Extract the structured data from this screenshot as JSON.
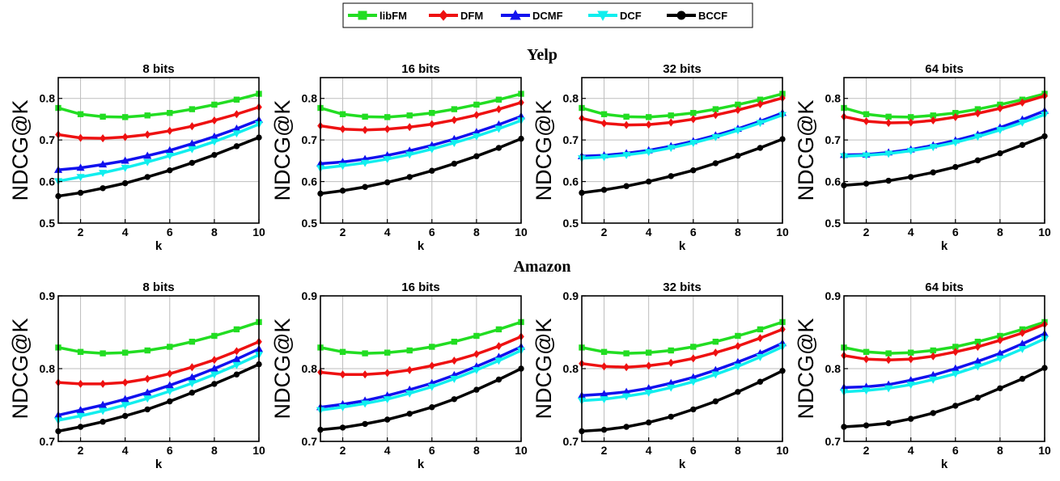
{
  "legend": [
    {
      "name": "libFM",
      "color": "#22dd22",
      "marker": "square"
    },
    {
      "name": "DFM",
      "color": "#ee1111",
      "marker": "diamond"
    },
    {
      "name": "DCMF",
      "color": "#1111ee",
      "marker": "triangle"
    },
    {
      "name": "DCF",
      "color": "#11eeee",
      "marker": "triangle-down"
    },
    {
      "name": "BCCF",
      "color": "#000000",
      "marker": "circle"
    }
  ],
  "datasets": [
    "Yelp",
    "Amazon"
  ],
  "chart_data": [
    {
      "type": "line",
      "dataset": "Yelp",
      "title": "8 bits",
      "xlabel": "k",
      "ylabel": "NDCG@K",
      "xlim": [
        1,
        10
      ],
      "ylim": [
        0.5,
        0.85
      ],
      "xticks": [
        2,
        4,
        6,
        8,
        10
      ],
      "yticks": [
        0.5,
        0.6,
        0.7,
        0.8
      ],
      "grid": true,
      "x": [
        1,
        2,
        3,
        4,
        5,
        6,
        7,
        8,
        9,
        10
      ],
      "series": [
        {
          "name": "libFM",
          "values": [
            0.777,
            0.762,
            0.756,
            0.755,
            0.759,
            0.765,
            0.774,
            0.785,
            0.797,
            0.811
          ]
        },
        {
          "name": "DFM",
          "values": [
            0.713,
            0.705,
            0.704,
            0.707,
            0.713,
            0.722,
            0.733,
            0.747,
            0.762,
            0.779
          ]
        },
        {
          "name": "DCMF",
          "values": [
            0.628,
            0.633,
            0.641,
            0.65,
            0.662,
            0.675,
            0.691,
            0.708,
            0.727,
            0.748
          ]
        },
        {
          "name": "DCF",
          "values": [
            0.601,
            0.611,
            0.621,
            0.633,
            0.647,
            0.662,
            0.678,
            0.696,
            0.716,
            0.738
          ]
        },
        {
          "name": "BCCF",
          "values": [
            0.565,
            0.573,
            0.584,
            0.596,
            0.611,
            0.627,
            0.645,
            0.664,
            0.685,
            0.706
          ]
        }
      ]
    },
    {
      "type": "line",
      "dataset": "Yelp",
      "title": "16 bits",
      "xlabel": "k",
      "ylabel": "NDCG@K",
      "xlim": [
        1,
        10
      ],
      "ylim": [
        0.5,
        0.85
      ],
      "xticks": [
        2,
        4,
        6,
        8,
        10
      ],
      "yticks": [
        0.5,
        0.6,
        0.7,
        0.8
      ],
      "grid": true,
      "x": [
        1,
        2,
        3,
        4,
        5,
        6,
        7,
        8,
        9,
        10
      ],
      "series": [
        {
          "name": "libFM",
          "values": [
            0.777,
            0.762,
            0.756,
            0.755,
            0.759,
            0.765,
            0.774,
            0.785,
            0.797,
            0.811
          ]
        },
        {
          "name": "DFM",
          "values": [
            0.734,
            0.726,
            0.724,
            0.726,
            0.731,
            0.738,
            0.748,
            0.76,
            0.774,
            0.79
          ]
        },
        {
          "name": "DCMF",
          "values": [
            0.643,
            0.647,
            0.654,
            0.663,
            0.674,
            0.687,
            0.702,
            0.719,
            0.737,
            0.757
          ]
        },
        {
          "name": "DCF",
          "values": [
            0.632,
            0.638,
            0.645,
            0.654,
            0.665,
            0.678,
            0.693,
            0.709,
            0.727,
            0.747
          ]
        },
        {
          "name": "BCCF",
          "values": [
            0.571,
            0.578,
            0.587,
            0.598,
            0.611,
            0.626,
            0.643,
            0.661,
            0.681,
            0.703
          ]
        }
      ]
    },
    {
      "type": "line",
      "dataset": "Yelp",
      "title": "32 bits",
      "xlabel": "k",
      "ylabel": "NDCG@K",
      "xlim": [
        1,
        10
      ],
      "ylim": [
        0.5,
        0.85
      ],
      "xticks": [
        2,
        4,
        6,
        8,
        10
      ],
      "yticks": [
        0.5,
        0.6,
        0.7,
        0.8
      ],
      "grid": true,
      "x": [
        1,
        2,
        3,
        4,
        5,
        6,
        7,
        8,
        9,
        10
      ],
      "series": [
        {
          "name": "libFM",
          "values": [
            0.777,
            0.762,
            0.756,
            0.755,
            0.759,
            0.765,
            0.774,
            0.785,
            0.797,
            0.811
          ]
        },
        {
          "name": "DFM",
          "values": [
            0.752,
            0.74,
            0.736,
            0.737,
            0.742,
            0.75,
            0.76,
            0.772,
            0.786,
            0.801
          ]
        },
        {
          "name": "DCMF",
          "values": [
            0.661,
            0.663,
            0.668,
            0.675,
            0.685,
            0.697,
            0.711,
            0.727,
            0.745,
            0.765
          ]
        },
        {
          "name": "DCF",
          "values": [
            0.656,
            0.659,
            0.664,
            0.671,
            0.681,
            0.693,
            0.707,
            0.723,
            0.741,
            0.76
          ]
        },
        {
          "name": "BCCF",
          "values": [
            0.573,
            0.58,
            0.589,
            0.6,
            0.613,
            0.627,
            0.644,
            0.662,
            0.681,
            0.702
          ]
        }
      ]
    },
    {
      "type": "line",
      "dataset": "Yelp",
      "title": "64 bits",
      "xlabel": "k",
      "ylabel": "NDCG@K",
      "xlim": [
        1,
        10
      ],
      "ylim": [
        0.5,
        0.85
      ],
      "xticks": [
        2,
        4,
        6,
        8,
        10
      ],
      "yticks": [
        0.5,
        0.6,
        0.7,
        0.8
      ],
      "grid": true,
      "x": [
        1,
        2,
        3,
        4,
        5,
        6,
        7,
        8,
        9,
        10
      ],
      "series": [
        {
          "name": "libFM",
          "values": [
            0.777,
            0.762,
            0.756,
            0.755,
            0.759,
            0.765,
            0.774,
            0.785,
            0.797,
            0.811
          ]
        },
        {
          "name": "DFM",
          "values": [
            0.756,
            0.745,
            0.741,
            0.742,
            0.747,
            0.755,
            0.764,
            0.776,
            0.79,
            0.806
          ]
        },
        {
          "name": "DCMF",
          "values": [
            0.664,
            0.665,
            0.67,
            0.677,
            0.687,
            0.699,
            0.713,
            0.73,
            0.749,
            0.77
          ]
        },
        {
          "name": "DCF",
          "values": [
            0.661,
            0.663,
            0.667,
            0.674,
            0.683,
            0.694,
            0.708,
            0.724,
            0.742,
            0.761
          ]
        },
        {
          "name": "BCCF",
          "values": [
            0.591,
            0.595,
            0.602,
            0.611,
            0.622,
            0.635,
            0.651,
            0.668,
            0.688,
            0.709
          ]
        }
      ]
    },
    {
      "type": "line",
      "dataset": "Amazon",
      "title": "8 bits",
      "xlabel": "k",
      "ylabel": "NDCG@K",
      "xlim": [
        1,
        10
      ],
      "ylim": [
        0.7,
        0.9
      ],
      "xticks": [
        2,
        4,
        6,
        8,
        10
      ],
      "yticks": [
        0.7,
        0.8,
        0.9
      ],
      "grid": true,
      "x": [
        1,
        2,
        3,
        4,
        5,
        6,
        7,
        8,
        9,
        10
      ],
      "series": [
        {
          "name": "libFM",
          "values": [
            0.829,
            0.823,
            0.821,
            0.822,
            0.825,
            0.83,
            0.837,
            0.845,
            0.854,
            0.864
          ]
        },
        {
          "name": "DFM",
          "values": [
            0.781,
            0.779,
            0.779,
            0.781,
            0.786,
            0.793,
            0.802,
            0.812,
            0.824,
            0.837
          ]
        },
        {
          "name": "DCMF",
          "values": [
            0.736,
            0.743,
            0.75,
            0.758,
            0.767,
            0.777,
            0.788,
            0.8,
            0.813,
            0.827
          ]
        },
        {
          "name": "DCF",
          "values": [
            0.729,
            0.735,
            0.742,
            0.75,
            0.759,
            0.769,
            0.78,
            0.792,
            0.805,
            0.819
          ]
        },
        {
          "name": "BCCF",
          "values": [
            0.714,
            0.72,
            0.727,
            0.735,
            0.744,
            0.755,
            0.767,
            0.779,
            0.792,
            0.806
          ]
        }
      ]
    },
    {
      "type": "line",
      "dataset": "Amazon",
      "title": "16 bits",
      "xlabel": "k",
      "ylabel": "NDCG@K",
      "xlim": [
        1,
        10
      ],
      "ylim": [
        0.7,
        0.9
      ],
      "xticks": [
        2,
        4,
        6,
        8,
        10
      ],
      "yticks": [
        0.7,
        0.8,
        0.9
      ],
      "grid": true,
      "x": [
        1,
        2,
        3,
        4,
        5,
        6,
        7,
        8,
        9,
        10
      ],
      "series": [
        {
          "name": "libFM",
          "values": [
            0.829,
            0.823,
            0.821,
            0.822,
            0.825,
            0.83,
            0.837,
            0.845,
            0.854,
            0.864
          ]
        },
        {
          "name": "DFM",
          "values": [
            0.795,
            0.792,
            0.792,
            0.794,
            0.798,
            0.804,
            0.811,
            0.82,
            0.831,
            0.844
          ]
        },
        {
          "name": "DCMF",
          "values": [
            0.747,
            0.751,
            0.756,
            0.763,
            0.771,
            0.78,
            0.791,
            0.803,
            0.816,
            0.83
          ]
        },
        {
          "name": "DCF",
          "values": [
            0.743,
            0.747,
            0.752,
            0.758,
            0.766,
            0.775,
            0.786,
            0.798,
            0.811,
            0.825
          ]
        },
        {
          "name": "BCCF",
          "values": [
            0.716,
            0.719,
            0.724,
            0.73,
            0.738,
            0.747,
            0.758,
            0.771,
            0.785,
            0.8
          ]
        }
      ]
    },
    {
      "type": "line",
      "dataset": "Amazon",
      "title": "32 bits",
      "xlabel": "k",
      "ylabel": "NDCG@K",
      "xlim": [
        1,
        10
      ],
      "ylim": [
        0.7,
        0.9
      ],
      "xticks": [
        2,
        4,
        6,
        8,
        10
      ],
      "yticks": [
        0.7,
        0.8,
        0.9
      ],
      "grid": true,
      "x": [
        1,
        2,
        3,
        4,
        5,
        6,
        7,
        8,
        9,
        10
      ],
      "series": [
        {
          "name": "libFM",
          "values": [
            0.829,
            0.823,
            0.821,
            0.822,
            0.825,
            0.83,
            0.837,
            0.845,
            0.854,
            0.864
          ]
        },
        {
          "name": "DFM",
          "values": [
            0.807,
            0.803,
            0.802,
            0.804,
            0.808,
            0.814,
            0.822,
            0.831,
            0.842,
            0.854
          ]
        },
        {
          "name": "DCMF",
          "values": [
            0.763,
            0.765,
            0.768,
            0.773,
            0.78,
            0.788,
            0.798,
            0.809,
            0.821,
            0.835
          ]
        },
        {
          "name": "DCF",
          "values": [
            0.756,
            0.758,
            0.762,
            0.767,
            0.774,
            0.782,
            0.792,
            0.803,
            0.816,
            0.83
          ]
        },
        {
          "name": "BCCF",
          "values": [
            0.714,
            0.716,
            0.72,
            0.726,
            0.734,
            0.744,
            0.755,
            0.768,
            0.782,
            0.797
          ]
        }
      ]
    },
    {
      "type": "line",
      "dataset": "Amazon",
      "title": "64 bits",
      "xlabel": "k",
      "ylabel": "NDCG@K",
      "xlim": [
        1,
        10
      ],
      "ylim": [
        0.7,
        0.9
      ],
      "xticks": [
        2,
        4,
        6,
        8,
        10
      ],
      "yticks": [
        0.7,
        0.8,
        0.9
      ],
      "grid": true,
      "x": [
        1,
        2,
        3,
        4,
        5,
        6,
        7,
        8,
        9,
        10
      ],
      "series": [
        {
          "name": "libFM",
          "values": [
            0.829,
            0.823,
            0.821,
            0.822,
            0.825,
            0.83,
            0.837,
            0.845,
            0.854,
            0.864
          ]
        },
        {
          "name": "DFM",
          "values": [
            0.818,
            0.813,
            0.812,
            0.813,
            0.817,
            0.823,
            0.83,
            0.839,
            0.849,
            0.861
          ]
        },
        {
          "name": "DCMF",
          "values": [
            0.774,
            0.775,
            0.778,
            0.784,
            0.791,
            0.8,
            0.81,
            0.821,
            0.834,
            0.848
          ]
        },
        {
          "name": "DCF",
          "values": [
            0.768,
            0.77,
            0.773,
            0.778,
            0.785,
            0.793,
            0.803,
            0.814,
            0.827,
            0.841
          ]
        },
        {
          "name": "BCCF",
          "values": [
            0.72,
            0.722,
            0.725,
            0.731,
            0.739,
            0.749,
            0.76,
            0.773,
            0.786,
            0.801
          ]
        }
      ]
    }
  ]
}
